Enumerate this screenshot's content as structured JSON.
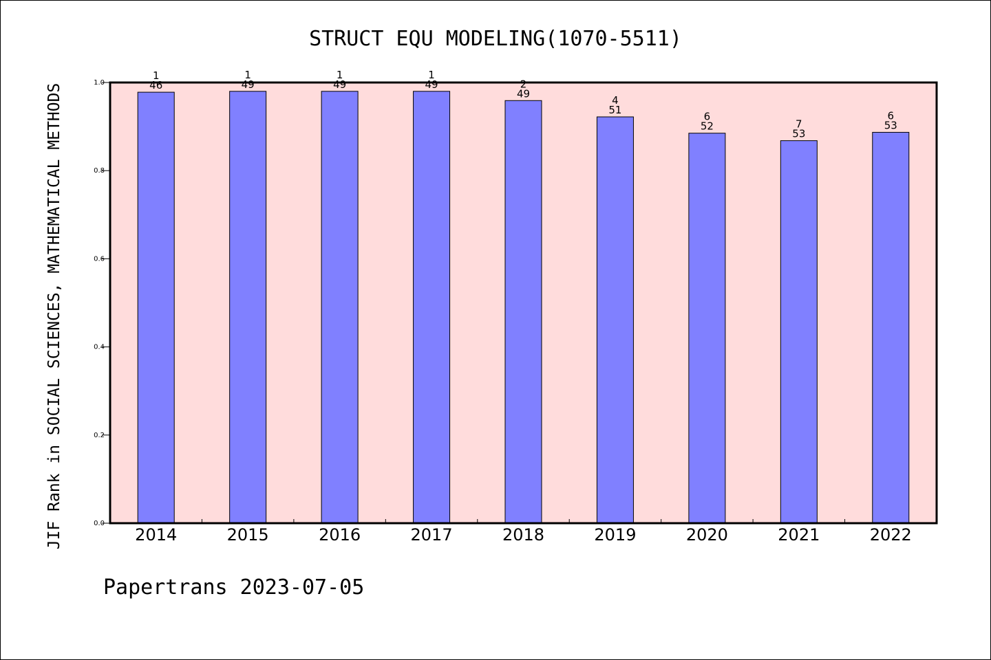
{
  "chart_data": {
    "type": "bar",
    "title": "STRUCT EQU MODELING(1070-5511)",
    "xlabel": "",
    "ylabel": "JIF Rank in SOCIAL SCIENCES, MATHEMATICAL METHODS",
    "ylim": [
      0,
      1.0
    ],
    "yticks": [
      "0.0",
      "0.2",
      "0.4",
      "0.6",
      "0.8",
      "1.0"
    ],
    "categories": [
      "2014",
      "2015",
      "2016",
      "2017",
      "2018",
      "2019",
      "2020",
      "2021",
      "2022"
    ],
    "values": [
      0.978,
      0.98,
      0.98,
      0.98,
      0.959,
      0.922,
      0.885,
      0.868,
      0.887
    ],
    "ranks": [
      "1",
      "1",
      "1",
      "1",
      "2",
      "4",
      "6",
      "7",
      "6"
    ],
    "totals": [
      "46",
      "49",
      "49",
      "49",
      "49",
      "51",
      "52",
      "53",
      "53"
    ],
    "grid": false,
    "colors": {
      "bar": "#8080ff",
      "plot_background": "#ffdcdc",
      "frame": "#000000"
    }
  },
  "footer": "Papertrans 2023-07-05"
}
